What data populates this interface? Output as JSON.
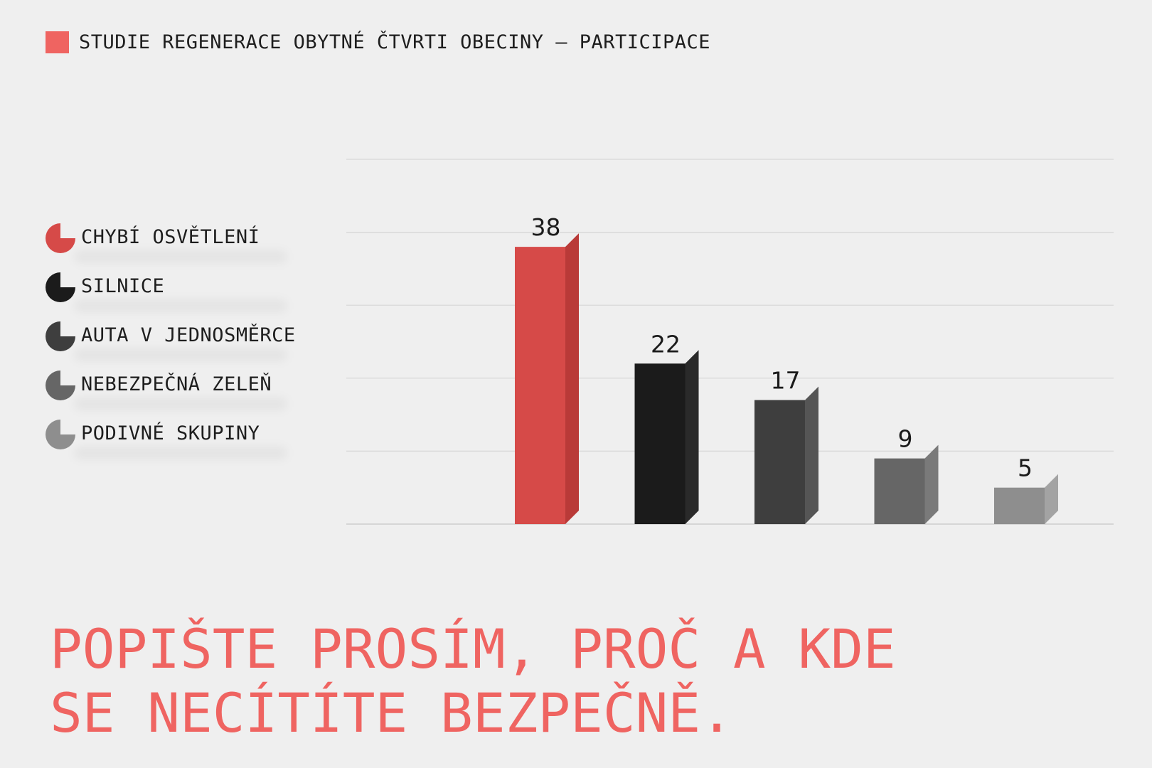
{
  "header": {
    "title": "STUDIE REGENERACE OBYTNÉ ČTVRTI OBECINY – PARTICIPACE",
    "accent_color": "#ef6461"
  },
  "legend": [
    {
      "label": "CHYBÍ OSVĚTLENÍ",
      "color": "#d64a48",
      "icon": "pie-icon"
    },
    {
      "label": "SILNICE",
      "color": "#1b1b1b",
      "icon": "pie-icon"
    },
    {
      "label": "AUTA V JEDNOSMĚRCE",
      "color": "#3e3e3e",
      "icon": "pie-icon"
    },
    {
      "label": "NEBEZPEČNÁ ZELEŇ",
      "color": "#666666",
      "icon": "pie-icon"
    },
    {
      "label": "PODIVNÉ SKUPINY",
      "color": "#8e8e8e",
      "icon": "pie-icon"
    }
  ],
  "chart_data": {
    "type": "bar",
    "categories": [
      "CHYBÍ OSVĚTLENÍ",
      "SILNICE",
      "AUTA V JEDNOSMĚRCE",
      "NEBEZPEČNÁ ZELEŇ",
      "PODIVNÉ SKUPINY"
    ],
    "values": [
      38,
      22,
      17,
      9,
      5
    ],
    "colors": [
      "#d64a48",
      "#1b1b1b",
      "#3e3e3e",
      "#666666",
      "#8e8e8e"
    ],
    "side_colors": [
      "#b93a38",
      "#2a2a2a",
      "#555555",
      "#7a7a7a",
      "#a3a3a3"
    ],
    "ylim": [
      0,
      50
    ],
    "grid": true,
    "legend_position": "left",
    "title": "",
    "xlabel": "",
    "ylabel": ""
  },
  "footer": {
    "line1": "POPIŠTE PROSÍM, PROČ A KDE",
    "line2": "SE NECÍTÍTE BEZPEČNĚ."
  }
}
